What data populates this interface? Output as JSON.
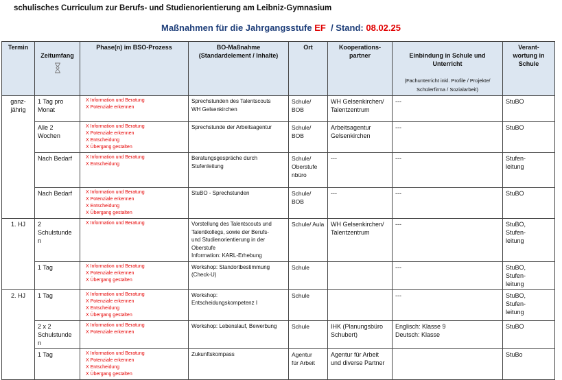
{
  "header": {
    "title": "schulisches Curriculum zur Berufs- und Studienorientierung am Leibniz-Gymnasium",
    "subtitle_prefix": "Maßnahmen für die Jahrgangsstufe",
    "stufe": "EF",
    "stand_label": "/ Stand:",
    "stand_date": "08.02.25",
    "accent_color": "#1f3f7a",
    "highlight_color": "#e00000"
  },
  "table": {
    "columns": {
      "termin": "Termin",
      "zeitumfang": "Zeitumfang",
      "zeitumfang_icon": "hourglass-icon",
      "phase": "Phase(n) im BSO-Prozess",
      "massnahme": "BO-Maßnahme\n(Standardelement / Inhalte)",
      "ort": "Ort",
      "partner": "Kooperations-\npartner",
      "einbindung": "Einbindung in Schule und\nUnterricht",
      "einbindung_note": "(Fachunterricht inkl. Profile / Projekte/\nSchülerfirma / Sozialarbeit)",
      "verantwortung": "Verant-\nwortung in\nSchule"
    },
    "groups": [
      {
        "termin": "ganz-\njährig",
        "rows": [
          {
            "zeit": "1 Tag pro\nMonat",
            "phases": "X  Information und Beratung\nX  Potenziale erkennen",
            "massnahme": "Sprechstunden des Talentscouts\nWH Gelsenkirchen",
            "ort": "Schule/\nBOB",
            "partner": "WH Gelsenkirchen/\nTalentzentrum",
            "einbindung": "---",
            "verantwortung": "StuBO"
          },
          {
            "zeit": "Alle 2\nWochen",
            "phases": "X  Information und Beratung\nX  Potenziale erkennen\nX  Entscheidung\nX  Übergang gestalten",
            "massnahme": "Sprechstunde der Arbeitsagentur",
            "ort": "Schule/\nBOB",
            "partner": "Arbeitsagentur\nGelsenkirchen",
            "einbindung": "---",
            "verantwortung": "StuBO"
          },
          {
            "zeit": "Nach Bedarf",
            "phases": "X  Information und Beratung\nX  Entscheidung",
            "massnahme": "Beratungsgespräche durch\nStufenleitung",
            "ort": "Schule/\nOberstufe\nnbüro",
            "partner": "---",
            "einbindung": "---",
            "verantwortung": "Stufen-\nleitung"
          },
          {
            "zeit": "Nach Bedarf",
            "phases": "X  Information und Beratung\nX  Potenziale erkennen\nX  Entscheidung\nX  Übergang gestalten",
            "massnahme": "StuBO - Sprechstunden",
            "ort": "Schule/\nBOB",
            "partner": "---",
            "einbindung": "---",
            "verantwortung": "StuBO"
          }
        ]
      },
      {
        "termin": "1. HJ",
        "rows": [
          {
            "zeit": "2\nSchulstunde\nn",
            "phases": "X  Information und Beratung",
            "massnahme": "Vorstellung des Talentscouts und\nTalentkollegs, sowie der Berufs-\nund Studienorientierung in der\nOberstufe\nInformation: KARL-Erhebung",
            "ort": "Schule/ Aula",
            "partner": "WH Gelsenkirchen/\nTalentzentrum",
            "einbindung": "---",
            "verantwortung": "StuBO,\nStufen-\nleitung"
          },
          {
            "zeit": "1 Tag",
            "phases": "X  Information und Beratung\nX  Potenziale erkennen\nX  Übergang gestalten",
            "massnahme": "Workshop: Standortbestimmung\n(Check-U)",
            "ort": "Schule",
            "partner": "",
            "einbindung": "---",
            "verantwortung": "StuBO,\nStufen-\nleitung"
          }
        ]
      },
      {
        "termin": "2. HJ",
        "rows": [
          {
            "zeit": "1 Tag",
            "phases": "X  Information und Beratung\nX  Potenziale erkennen\nX  Entscheidung\nX  Übergang gestalten",
            "massnahme": "Workshop:\nEntscheidungskompetenz I",
            "ort": "Schule",
            "partner": "",
            "einbindung": "---",
            "verantwortung": "StuBO,\nStufen-\nleitung"
          },
          {
            "zeit": "2 x 2\nSchulstunde\nn",
            "phases": "X  Information und Beratung\nX  Potenziale erkennen",
            "massnahme": "Workshop: Lebenslauf, Bewerbung",
            "ort": "Schule",
            "partner": "IHK (Planungsbüro\nSchubert)",
            "einbindung": "Englisch: Klasse 9\nDeutsch: Klasse",
            "verantwortung": "StuBO"
          },
          {
            "zeit": "1 Tag",
            "phases": "X  Information und Beratung\nX  Potenziale erkennen\nX  Entscheidung\nX  Übergang gestalten",
            "massnahme": "Zukunftskompass",
            "ort": "Agentur\nfür Arbeit",
            "partner": "Agentur für Arbeit\nund diverse Partner",
            "einbindung": "",
            "verantwortung": "StuBo"
          }
        ]
      }
    ]
  }
}
